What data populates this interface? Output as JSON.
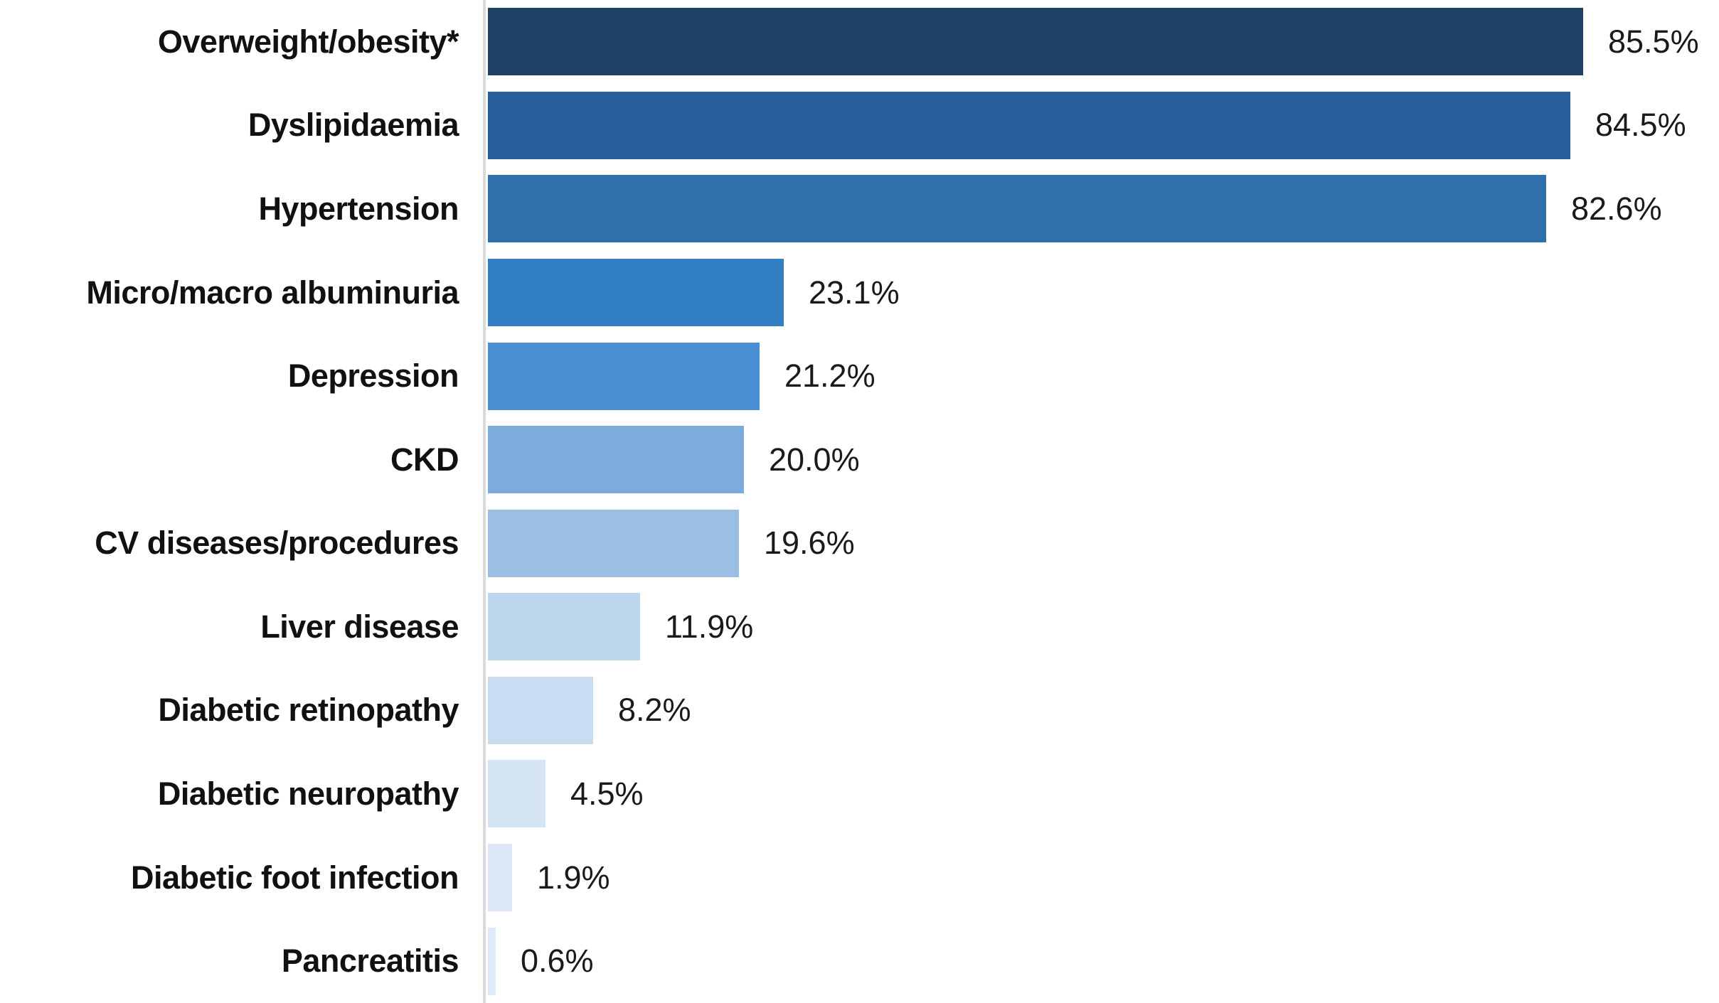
{
  "chart_data": {
    "type": "bar",
    "orientation": "horizontal",
    "title": "",
    "xlabel": "",
    "ylabel": "",
    "xlim": [
      0,
      96
    ],
    "grid": false,
    "axis_line_color": "#d9d9d9",
    "label_text_color": "#111111",
    "value_text_color": "#1a1a1a",
    "background_color": "#ffffff",
    "categories": [
      "Overweight/obesity*",
      "Dyslipidaemia",
      "Hypertension",
      "Micro/macro albuminuria",
      "Depression",
      "CKD",
      "CV diseases/procedures",
      "Liver disease",
      "Diabetic retinopathy",
      "Diabetic neuropathy",
      "Diabetic foot infection",
      "Pancreatitis"
    ],
    "values": [
      85.5,
      84.5,
      82.6,
      23.1,
      21.2,
      20.0,
      19.6,
      11.9,
      8.2,
      4.5,
      1.9,
      0.6
    ],
    "value_labels": [
      "85.5%",
      "84.5%",
      "82.6%",
      "23.1%",
      "21.2%",
      "20.0%",
      "19.6%",
      "11.9%",
      "8.2%",
      "4.5%",
      "1.9%",
      "0.6%"
    ],
    "bar_colors": [
      "#1e4165",
      "#265f99",
      "#2e6fac",
      "#337fc3",
      "#4a8fd3",
      "#7cacdc",
      "#9abee4",
      "#bed6ed",
      "#c9ddf2",
      "#d5e4f4",
      "#dbe7f6",
      "#dfeaf8"
    ]
  }
}
